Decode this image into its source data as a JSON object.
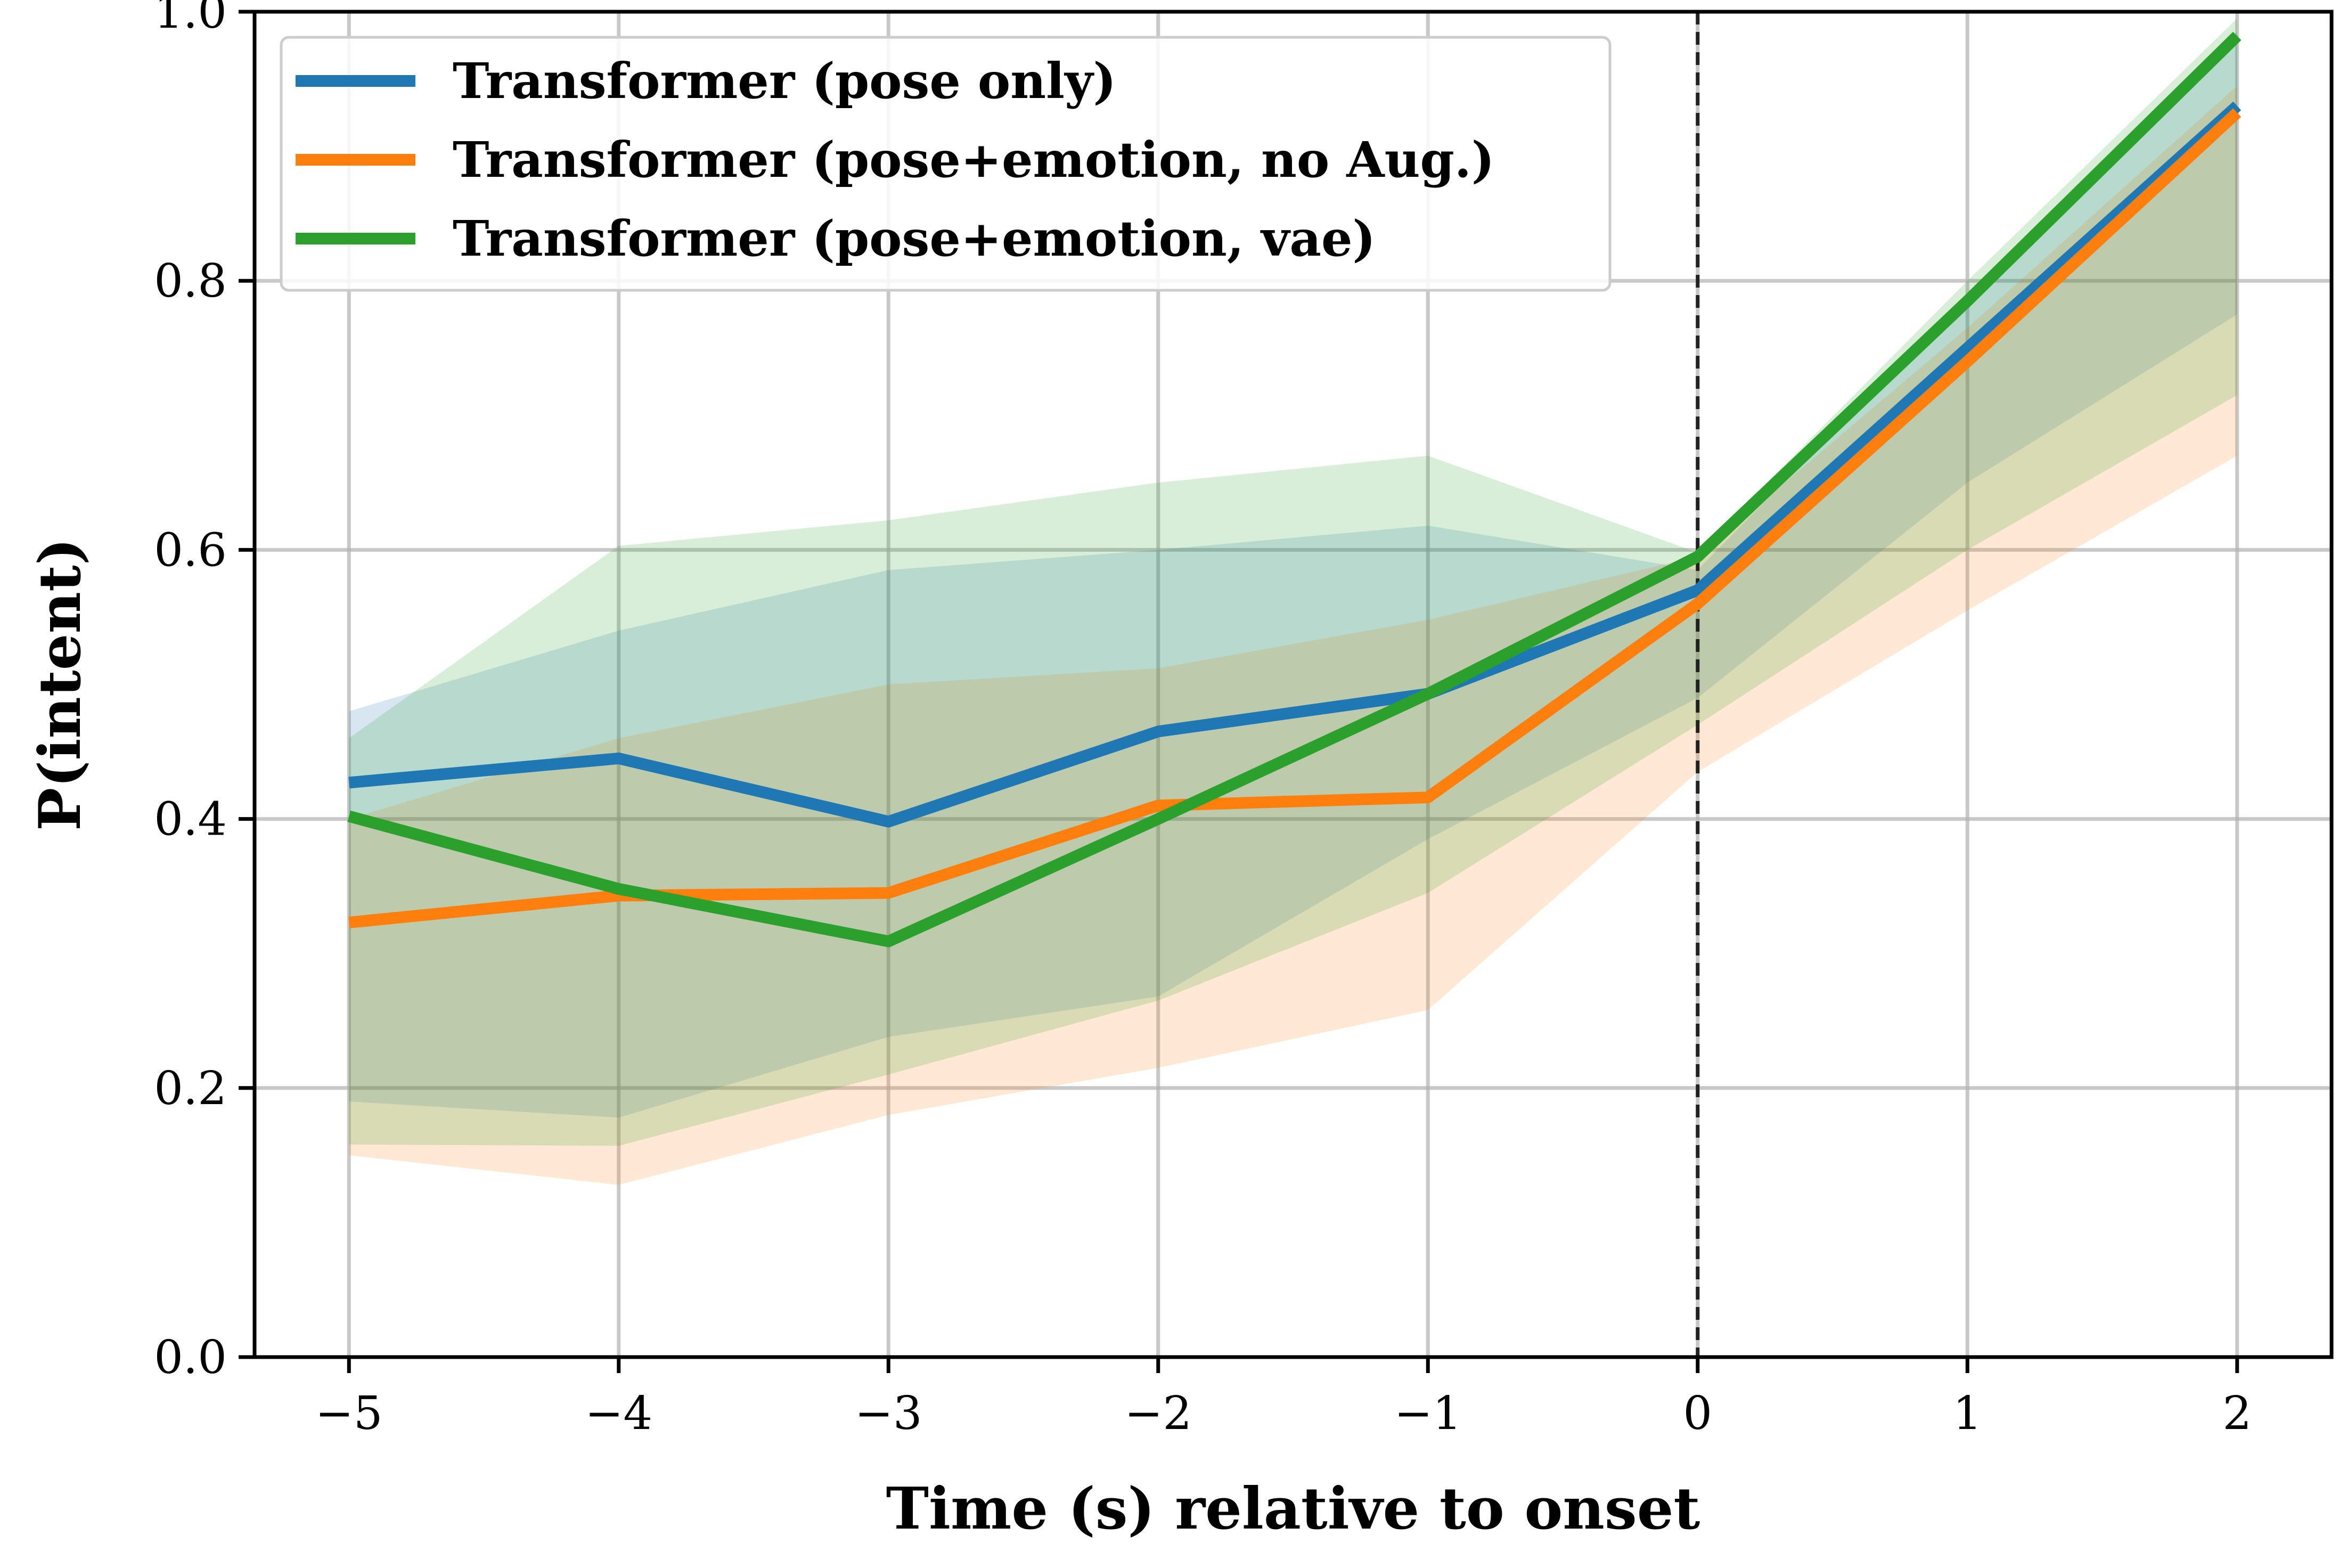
{
  "chart_data": {
    "type": "line",
    "title": "",
    "xlabel": "Time (s) relative to onset",
    "ylabel": "P(intent)",
    "xlim": [
      -5.35,
      2.35
    ],
    "ylim": [
      0.0,
      1.0
    ],
    "x": [
      -5,
      -4,
      -3,
      -2,
      -1,
      0,
      1,
      2
    ],
    "xticks": [
      -5,
      -4,
      -3,
      -2,
      -1,
      0,
      1,
      2
    ],
    "xtick_labels": [
      "−5",
      "−4",
      "−3",
      "−2",
      "−1",
      "0",
      "1",
      "2"
    ],
    "yticks": [
      0.0,
      0.2,
      0.4,
      0.6,
      0.8,
      1.0
    ],
    "ytick_labels": [
      "0.0",
      "0.2",
      "0.4",
      "0.6",
      "0.8",
      "1.0"
    ],
    "grid": true,
    "legend_position": "top-left",
    "onset_line_x": 0,
    "series": [
      {
        "name": "Transformer (pose only)",
        "color": "#1f77b4",
        "values": [
          0.427,
          0.445,
          0.398,
          0.465,
          0.493,
          0.57,
          0.75,
          0.93
        ],
        "lower": [
          0.19,
          0.178,
          0.238,
          0.268,
          0.385,
          0.49,
          0.65,
          0.775
        ],
        "upper": [
          0.48,
          0.54,
          0.585,
          0.6,
          0.618,
          0.585,
          0.79,
          0.985
        ]
      },
      {
        "name": "Transformer (pose+emotion, no Aug.)",
        "color": "#ff7f0e",
        "values": [
          0.323,
          0.343,
          0.345,
          0.41,
          0.416,
          0.56,
          0.74,
          0.925
        ],
        "lower": [
          0.15,
          0.128,
          0.18,
          0.215,
          0.258,
          0.435,
          0.555,
          0.67
        ],
        "upper": [
          0.4,
          0.46,
          0.5,
          0.512,
          0.548,
          0.595,
          0.765,
          0.945
        ]
      },
      {
        "name": "Transformer (pose+emotion, vae)",
        "color": "#2ca02c",
        "values": [
          0.402,
          0.348,
          0.309,
          0.4,
          0.493,
          0.595,
          0.785,
          0.982
        ],
        "lower": [
          0.158,
          0.157,
          0.21,
          0.265,
          0.345,
          0.47,
          0.6,
          0.715
        ],
        "upper": [
          0.46,
          0.603,
          0.622,
          0.65,
          0.67,
          0.598,
          0.8,
          0.995
        ]
      }
    ]
  }
}
